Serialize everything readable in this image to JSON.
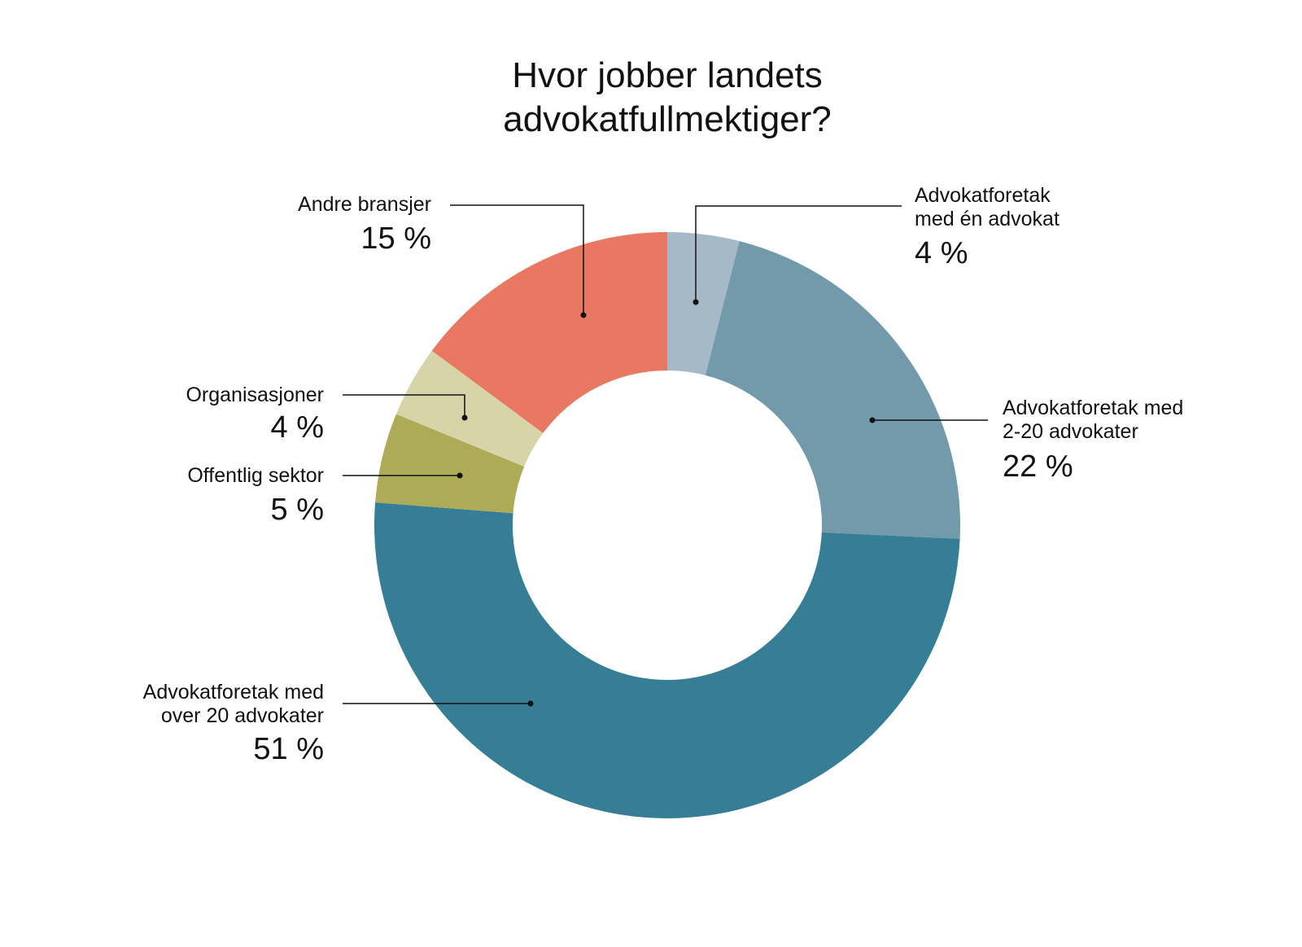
{
  "chart_data": {
    "type": "pie",
    "variant": "donut",
    "title": [
      "Hvor jobber landets",
      "advokatfullmektiger?"
    ],
    "start": "top",
    "direction": "clockwise",
    "slices": [
      {
        "label": [
          "Advokatforetak",
          "med én advokat"
        ],
        "value": 4,
        "value_label": "4 %",
        "color": "#a6b9c6"
      },
      {
        "label": [
          "Advokatforetak med",
          "2-20 advokater"
        ],
        "value": 22,
        "value_label": "22 %",
        "color": "#729aab"
      },
      {
        "label": [
          "Advokatforetak med",
          "over 20 advokater"
        ],
        "value": 51,
        "value_label": "51 %",
        "color": "#367e95"
      },
      {
        "label": [
          "Offentlig sektor"
        ],
        "value": 5,
        "value_label": "5 %",
        "color": "#aeab57"
      },
      {
        "label": [
          "Organisasjoner"
        ],
        "value": 4,
        "value_label": "4 %",
        "color": "#d8d4aa"
      },
      {
        "label": [
          "Andre bransjer"
        ],
        "value": 15,
        "value_label": "15 %",
        "color": "#e87862"
      }
    ]
  }
}
